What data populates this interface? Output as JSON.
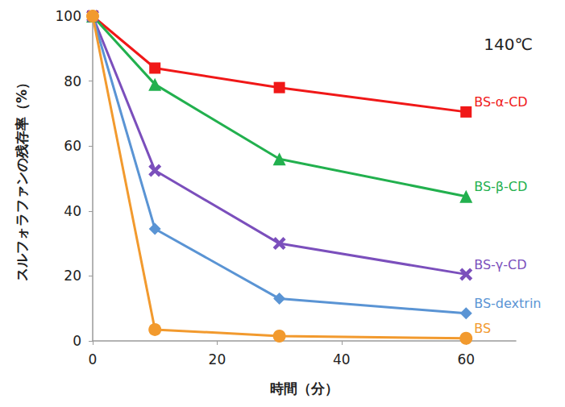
{
  "chart_data": {
    "type": "line",
    "annotation": "140℃",
    "x_label": "時間（分）",
    "y_label": "スルフォラファンの残存率（%）",
    "x": [
      0,
      10,
      30,
      60
    ],
    "series": [
      {
        "name": "BS-α-CD",
        "color": "#f01818",
        "marker": "square",
        "values": [
          100,
          84,
          78,
          70.5
        ]
      },
      {
        "name": "BS-β-CD",
        "color": "#22b04e",
        "marker": "triangle",
        "values": [
          100,
          79,
          56,
          44.5
        ]
      },
      {
        "name": "BS-γ-CD",
        "color": "#7b4fbc",
        "marker": "cross",
        "values": [
          100,
          52.5,
          30,
          20.5
        ]
      },
      {
        "name": "BS-dextrin",
        "color": "#5a94d4",
        "marker": "diamond",
        "values": [
          100,
          34.5,
          13,
          8.5
        ]
      },
      {
        "name": "BS",
        "color": "#f29a2e",
        "marker": "circle",
        "values": [
          100,
          3.5,
          1.5,
          0.8
        ]
      }
    ],
    "xlim": [
      0,
      68
    ],
    "xticks": [
      0,
      20,
      40,
      60
    ],
    "ylim": [
      0,
      100
    ],
    "yticks": [
      0,
      20,
      40,
      60,
      80,
      100
    ],
    "grid": false
  }
}
